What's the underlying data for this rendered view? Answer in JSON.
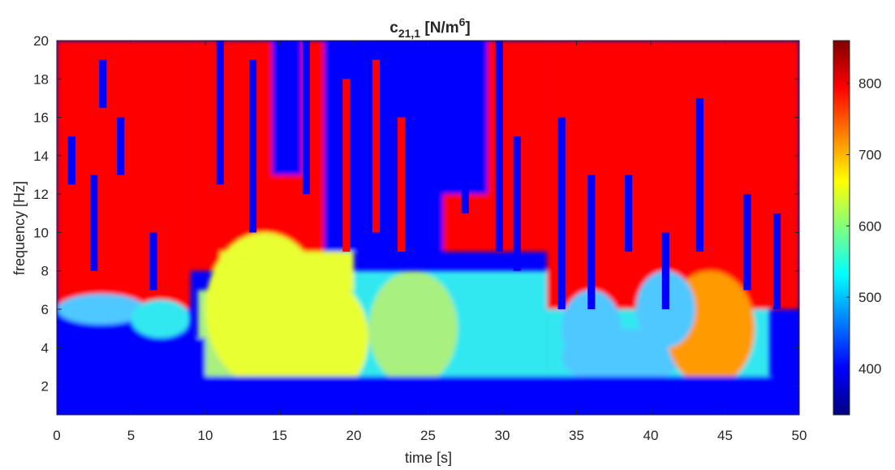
{
  "chart_data": {
    "type": "heatmap",
    "title": {
      "base": "c",
      "subscript": "21,1",
      "units_prefix": " [N/m",
      "units_superscript": "6",
      "units_suffix": "]"
    },
    "xlabel": "time [s]",
    "ylabel": "frequency [Hz]",
    "xlim": [
      0,
      50
    ],
    "ylim": [
      0.5,
      20
    ],
    "xticks": [
      0,
      5,
      10,
      15,
      20,
      25,
      30,
      35,
      40,
      45,
      50
    ],
    "yticks": [
      2,
      4,
      6,
      8,
      10,
      12,
      14,
      16,
      18,
      20
    ],
    "colormap": "jet",
    "color_limits": [
      335,
      860
    ],
    "colorbar_ticks": [
      400,
      500,
      600,
      700,
      800
    ],
    "grid": true,
    "colors": {
      "high": "#ff0000",
      "low": "#0000ff",
      "mid": "#c8f064"
    },
    "description_regions": [
      {
        "region": "low frequency band (0.5-3 Hz), all times",
        "approx_value": 350
      },
      {
        "region": "upper area (above ~8 Hz), t < 9 s and t > 33 s",
        "approx_value": 850
      },
      {
        "region": "central area 9-32 s, 2-10 Hz",
        "approx_value": 600
      },
      {
        "region": "upper central area 18-31 s, 12-20 Hz",
        "approx_value": 360
      }
    ]
  }
}
